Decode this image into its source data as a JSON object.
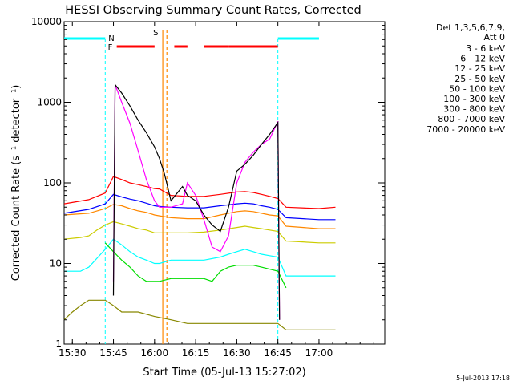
{
  "chart_data": {
    "type": "line",
    "title": "HESSI Observing Summary Count Rates, Corrected",
    "xlabel": "Start Time (05-Jul-13 15:27:02)",
    "ylabel": "Corrected Count Rate (s⁻¹ detector⁻¹)",
    "yscale": "log",
    "ylim": [
      1,
      10000
    ],
    "xlim_minutes": [
      15.45,
      17.4
    ],
    "x_ticks": [
      "15:30",
      "15:45",
      "16:00",
      "16:15",
      "16:30",
      "16:45",
      "17:00"
    ],
    "y_ticks": [
      "1",
      "10",
      "100",
      "1000",
      "10000"
    ],
    "detectors": "Det 1,3,5,6,7,9,",
    "attenuator": "Att 0",
    "timestamp": "5-Jul-2013 17:18",
    "series": [
      {
        "name": "3 - 6 keV",
        "color": "#000000",
        "points": [
          [
            15.75,
            4
          ],
          [
            15.76,
            1650
          ],
          [
            15.8,
            1300
          ],
          [
            15.85,
            900
          ],
          [
            15.9,
            600
          ],
          [
            15.95,
            420
          ],
          [
            16.0,
            280
          ],
          [
            16.03,
            200
          ],
          [
            16.06,
            130
          ],
          [
            16.1,
            60
          ],
          [
            16.17,
            90
          ],
          [
            16.2,
            70
          ],
          [
            16.25,
            60
          ],
          [
            16.3,
            40
          ],
          [
            16.35,
            30
          ],
          [
            16.4,
            25
          ],
          [
            16.45,
            50
          ],
          [
            16.5,
            140
          ],
          [
            16.55,
            170
          ],
          [
            16.6,
            220
          ],
          [
            16.65,
            300
          ],
          [
            16.7,
            400
          ],
          [
            16.75,
            560
          ],
          [
            16.76,
            2
          ]
        ]
      },
      {
        "name": "6 - 12 keV",
        "color": "#ff00ff",
        "points": [
          [
            15.75,
            6
          ],
          [
            15.76,
            1650
          ],
          [
            15.8,
            1000
          ],
          [
            15.85,
            550
          ],
          [
            15.9,
            250
          ],
          [
            15.95,
            110
          ],
          [
            16.0,
            60
          ],
          [
            16.03,
            50
          ],
          [
            16.1,
            50
          ],
          [
            16.17,
            55
          ],
          [
            16.2,
            100
          ],
          [
            16.25,
            70
          ],
          [
            16.3,
            35
          ],
          [
            16.35,
            16
          ],
          [
            16.4,
            14
          ],
          [
            16.45,
            22
          ],
          [
            16.5,
            100
          ],
          [
            16.55,
            180
          ],
          [
            16.6,
            240
          ],
          [
            16.65,
            300
          ],
          [
            16.7,
            350
          ],
          [
            16.75,
            580
          ],
          [
            16.76,
            2
          ]
        ]
      },
      {
        "name": "12 - 25 keV",
        "color": "#00dd00",
        "points": [
          [
            15.7,
            18
          ],
          [
            15.75,
            14
          ],
          [
            15.8,
            11
          ],
          [
            15.85,
            9
          ],
          [
            15.9,
            7
          ],
          [
            15.95,
            6
          ],
          [
            16.0,
            6
          ],
          [
            16.03,
            6
          ],
          [
            16.1,
            6.5
          ],
          [
            16.2,
            6.5
          ],
          [
            16.3,
            6.5
          ],
          [
            16.35,
            6
          ],
          [
            16.4,
            8
          ],
          [
            16.45,
            9
          ],
          [
            16.5,
            9.5
          ],
          [
            16.55,
            9.5
          ],
          [
            16.6,
            9.5
          ],
          [
            16.65,
            9
          ],
          [
            16.7,
            8.5
          ],
          [
            16.75,
            8
          ],
          [
            16.8,
            5
          ]
        ]
      },
      {
        "name": "25 - 50 keV",
        "color": "#00ffff",
        "points": [
          [
            15.45,
            8
          ],
          [
            15.55,
            8
          ],
          [
            15.6,
            9
          ],
          [
            15.7,
            15
          ],
          [
            15.75,
            20
          ],
          [
            15.8,
            17
          ],
          [
            15.85,
            14
          ],
          [
            15.9,
            12
          ],
          [
            15.95,
            11
          ],
          [
            16.0,
            10
          ],
          [
            16.03,
            10
          ],
          [
            16.1,
            11
          ],
          [
            16.2,
            11
          ],
          [
            16.3,
            11
          ],
          [
            16.4,
            12
          ],
          [
            16.45,
            13
          ],
          [
            16.5,
            14
          ],
          [
            16.55,
            15
          ],
          [
            16.6,
            14
          ],
          [
            16.65,
            13
          ],
          [
            16.7,
            12.5
          ],
          [
            16.75,
            12
          ],
          [
            16.8,
            7
          ],
          [
            17.0,
            7
          ],
          [
            17.1,
            7
          ]
        ]
      },
      {
        "name": "50 - 100 keV",
        "color": "#cccc00",
        "points": [
          [
            15.45,
            20
          ],
          [
            15.55,
            21
          ],
          [
            15.6,
            22
          ],
          [
            15.65,
            26
          ],
          [
            15.7,
            30
          ],
          [
            15.75,
            33
          ],
          [
            15.8,
            31
          ],
          [
            15.85,
            29
          ],
          [
            15.9,
            27
          ],
          [
            15.95,
            26
          ],
          [
            16.0,
            24
          ],
          [
            16.03,
            24
          ],
          [
            16.1,
            24
          ],
          [
            16.2,
            24
          ],
          [
            16.3,
            24.5
          ],
          [
            16.4,
            26
          ],
          [
            16.5,
            28
          ],
          [
            16.55,
            29
          ],
          [
            16.6,
            28
          ],
          [
            16.65,
            27
          ],
          [
            16.7,
            26
          ],
          [
            16.75,
            25
          ],
          [
            16.8,
            19
          ],
          [
            17.0,
            18
          ],
          [
            17.1,
            18
          ]
        ]
      },
      {
        "name": "100 - 300 keV",
        "color": "#ff8800",
        "points": [
          [
            15.45,
            40
          ],
          [
            15.6,
            42
          ],
          [
            15.7,
            48
          ],
          [
            15.75,
            54
          ],
          [
            15.8,
            52
          ],
          [
            15.85,
            48
          ],
          [
            15.9,
            45
          ],
          [
            15.95,
            43
          ],
          [
            16.0,
            40
          ],
          [
            16.03,
            39
          ],
          [
            16.1,
            37
          ],
          [
            16.2,
            36
          ],
          [
            16.3,
            36
          ],
          [
            16.4,
            40
          ],
          [
            16.5,
            44
          ],
          [
            16.55,
            45
          ],
          [
            16.6,
            44
          ],
          [
            16.65,
            42
          ],
          [
            16.7,
            40
          ],
          [
            16.75,
            39
          ],
          [
            16.8,
            29
          ],
          [
            17.0,
            27
          ],
          [
            17.1,
            27
          ]
        ]
      },
      {
        "name": "300 - 800 keV",
        "color": "#0000ff",
        "points": [
          [
            15.45,
            42
          ],
          [
            15.6,
            47
          ],
          [
            15.7,
            55
          ],
          [
            15.75,
            72
          ],
          [
            15.8,
            67
          ],
          [
            15.85,
            63
          ],
          [
            15.9,
            60
          ],
          [
            15.95,
            56
          ],
          [
            16.0,
            52
          ],
          [
            16.03,
            51
          ],
          [
            16.1,
            50
          ],
          [
            16.2,
            49
          ],
          [
            16.3,
            49
          ],
          [
            16.4,
            52
          ],
          [
            16.5,
            55
          ],
          [
            16.55,
            56
          ],
          [
            16.6,
            55
          ],
          [
            16.65,
            52
          ],
          [
            16.7,
            50
          ],
          [
            16.75,
            47
          ],
          [
            16.8,
            37
          ],
          [
            17.0,
            35
          ],
          [
            17.1,
            35
          ]
        ]
      },
      {
        "name": "800 - 7000 keV",
        "color": "#ff0000",
        "points": [
          [
            15.45,
            55
          ],
          [
            15.6,
            62
          ],
          [
            15.7,
            75
          ],
          [
            15.75,
            120
          ],
          [
            15.8,
            110
          ],
          [
            15.85,
            100
          ],
          [
            15.9,
            95
          ],
          [
            15.95,
            90
          ],
          [
            16.0,
            85
          ],
          [
            16.03,
            84
          ],
          [
            16.1,
            70
          ],
          [
            16.2,
            68
          ],
          [
            16.3,
            68
          ],
          [
            16.4,
            72
          ],
          [
            16.5,
            77
          ],
          [
            16.55,
            78
          ],
          [
            16.6,
            76
          ],
          [
            16.65,
            72
          ],
          [
            16.7,
            68
          ],
          [
            16.75,
            64
          ],
          [
            16.8,
            50
          ],
          [
            17.0,
            48
          ],
          [
            17.1,
            50
          ]
        ]
      },
      {
        "name": "7000 - 20000 keV",
        "color": "#888800",
        "points": [
          [
            15.45,
            2
          ],
          [
            15.5,
            2.5
          ],
          [
            15.55,
            3
          ],
          [
            15.6,
            3.5
          ],
          [
            15.7,
            3.5
          ],
          [
            15.75,
            3
          ],
          [
            15.8,
            2.5
          ],
          [
            15.9,
            2.5
          ],
          [
            16.0,
            2.2
          ],
          [
            16.1,
            2
          ],
          [
            16.2,
            1.8
          ],
          [
            16.3,
            1.8
          ],
          [
            16.4,
            1.8
          ],
          [
            16.5,
            1.8
          ],
          [
            16.6,
            1.8
          ],
          [
            16.7,
            1.8
          ],
          [
            16.75,
            1.8
          ],
          [
            16.8,
            1.5
          ],
          [
            17.0,
            1.5
          ],
          [
            17.1,
            1.5
          ]
        ]
      }
    ],
    "markers": {
      "F": {
        "label": "F",
        "color": "#ff0000",
        "segments": [
          [
            15.77,
            16.0
          ],
          [
            16.12,
            16.2
          ],
          [
            16.3,
            16.45
          ],
          [
            16.45,
            16.75
          ]
        ]
      },
      "N": {
        "label": "N",
        "color": "#00ffff",
        "segments": [
          [
            15.45,
            15.7
          ],
          [
            16.75,
            17.0
          ]
        ]
      },
      "S": {
        "label": "S",
        "color": "#ff8800",
        "spans": [
          [
            16.05,
            16.075
          ]
        ]
      }
    }
  }
}
